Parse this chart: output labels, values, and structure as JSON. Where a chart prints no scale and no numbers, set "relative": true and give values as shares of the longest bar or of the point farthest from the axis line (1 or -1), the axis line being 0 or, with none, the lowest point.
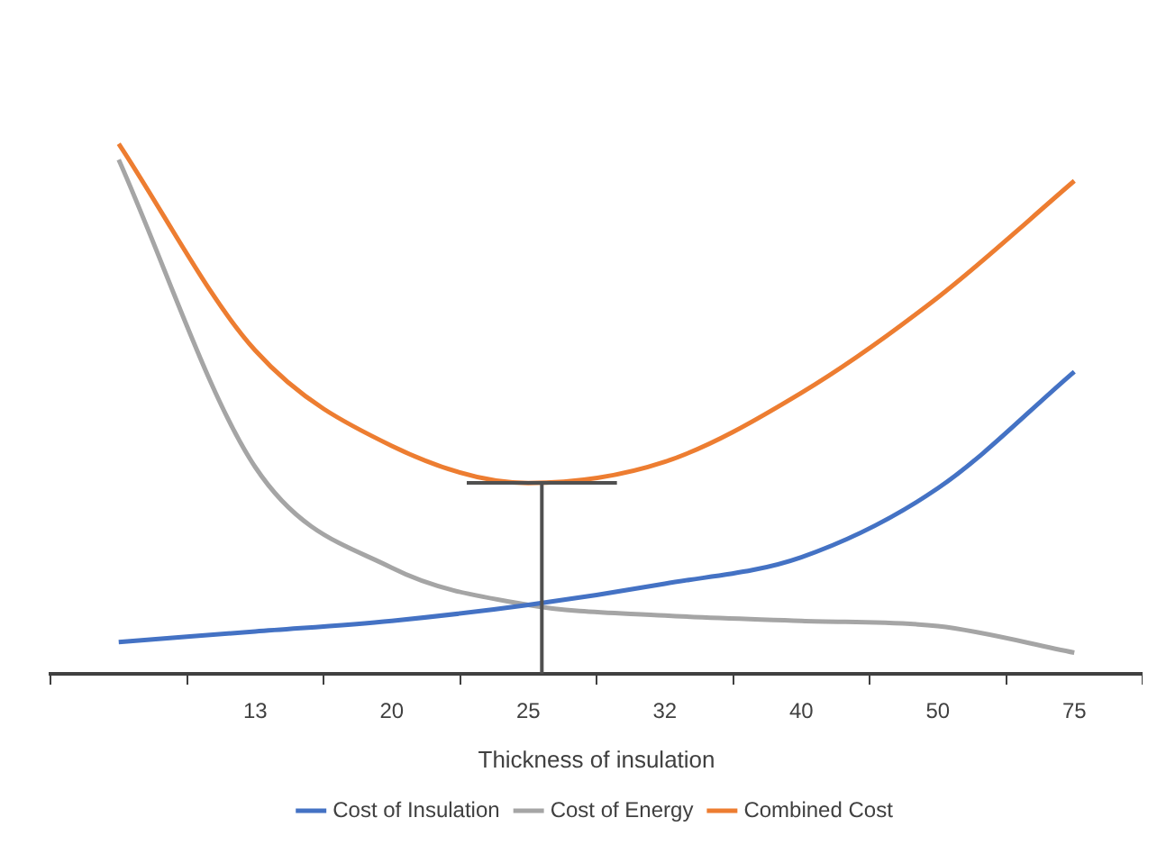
{
  "chart_data": {
    "type": "line",
    "xlabel": "Thickness of insulation",
    "relative": true,
    "legend": "bottom",
    "grid": false,
    "marker": "none",
    "categories": [
      null,
      "13",
      "20",
      "25",
      "32",
      "40",
      "50",
      "75"
    ],
    "series": [
      {
        "name": "Cost of Insulation",
        "color": "#4472c4",
        "values": [
          0.06,
          0.08,
          0.1,
          0.13,
          0.17,
          0.22,
          0.35,
          0.57
        ]
      },
      {
        "name": "Cost of Energy",
        "color": "#a5a5a5",
        "values": [
          0.97,
          0.39,
          0.2,
          0.13,
          0.11,
          0.1,
          0.09,
          0.04
        ]
      },
      {
        "name": "Combined Cost",
        "color": "#ed7d31",
        "values": [
          1,
          0.61,
          0.43,
          0.36,
          0.4,
          0.53,
          0.71,
          0.93
        ]
      }
    ]
  }
}
